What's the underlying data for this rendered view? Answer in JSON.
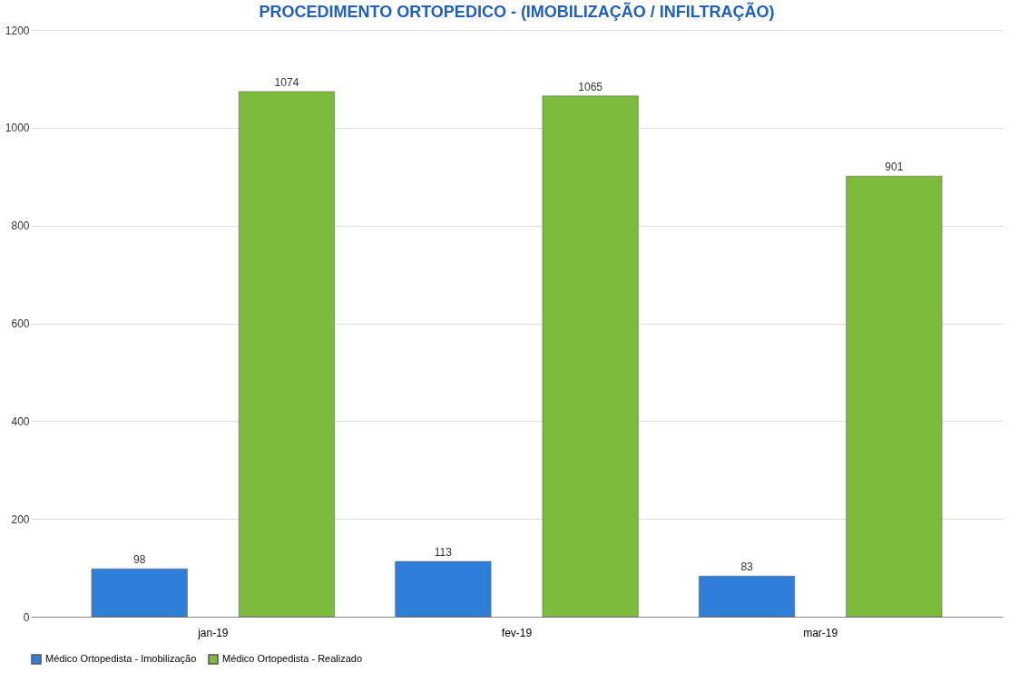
{
  "chart_data": {
    "type": "bar",
    "title": "PROCEDIMENTO ORTOPEDICO -  (IMOBILIZAÇÃO / INFILTRAÇÃO)",
    "categories": [
      "jan-19",
      "fev-19",
      "mar-19"
    ],
    "series": [
      {
        "name": "Médico Ortopedista - Imobilização",
        "color": "#2f7fd8",
        "values": [
          98,
          113,
          83
        ]
      },
      {
        "name": "Médico Ortopedista - Realizado",
        "color": "#7dbb3c",
        "values": [
          1074,
          1065,
          901
        ]
      }
    ],
    "ylim": [
      0,
      1200
    ],
    "yticks": [
      0,
      200,
      400,
      600,
      800,
      1000,
      1200
    ],
    "grid": "y",
    "legend": "bottom",
    "data_labels": true
  }
}
